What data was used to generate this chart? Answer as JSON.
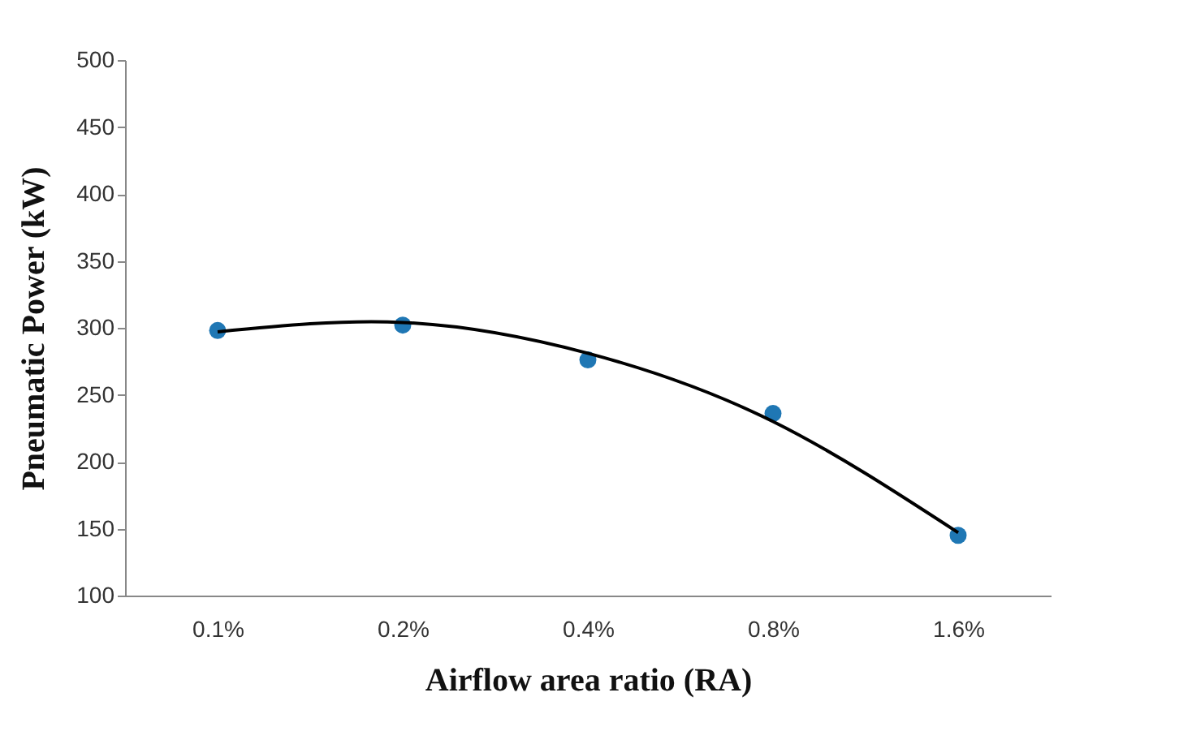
{
  "chart_data": {
    "type": "scatter",
    "xlabel": "Airflow area ratio (RA)",
    "ylabel": "Pneumatic Power (kW)",
    "categories": [
      "0.1%",
      "0.2%",
      "0.4%",
      "0.8%",
      "1.6%"
    ],
    "series": [
      {
        "color": "#1f77b4",
        "values": [
          298,
          302,
          276,
          236,
          145
        ],
        "marker": "circle"
      },
      {
        "type": "line",
        "color": "#000000",
        "x": [
          "0.1%",
          "0.2%",
          "0.4%",
          "0.8%",
          "1.6%"
        ],
        "values": [
          297,
          304,
          281,
          230,
          147
        ],
        "line_style": "solid"
      }
    ],
    "ylim": [
      100,
      500
    ],
    "yticks": [
      100,
      150,
      200,
      250,
      300,
      350,
      400,
      450,
      500
    ]
  }
}
